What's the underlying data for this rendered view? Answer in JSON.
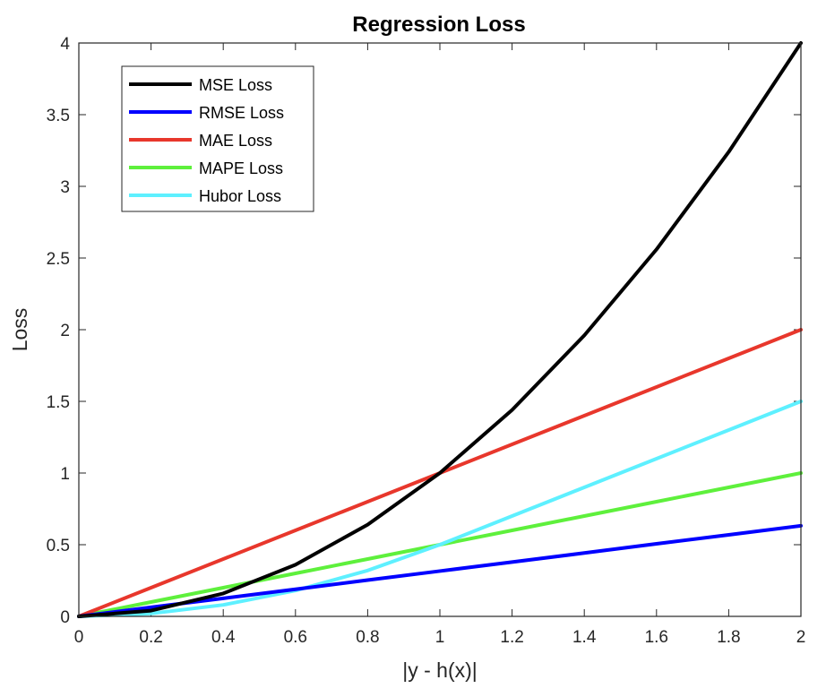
{
  "chart_data": {
    "type": "line",
    "title": "Regression Loss",
    "xlabel": "|y - h(x)|",
    "ylabel": "Loss",
    "xlim": [
      0,
      2
    ],
    "ylim": [
      0,
      4
    ],
    "x_ticks": [
      "0",
      "0.2",
      "0.4",
      "0.6",
      "0.8",
      "1",
      "1.2",
      "1.4",
      "1.6",
      "1.8",
      "2"
    ],
    "y_ticks": [
      "0",
      "0.5",
      "1",
      "1.5",
      "2",
      "2.5",
      "3",
      "3.5",
      "4"
    ],
    "grid": false,
    "legend_position": "top-left",
    "series": [
      {
        "name": "MSE Loss",
        "color": "#000000",
        "x": [
          0,
          0.2,
          0.4,
          0.6,
          0.8,
          1.0,
          1.2,
          1.4,
          1.6,
          1.8,
          2.0
        ],
        "y": [
          0,
          0.04,
          0.16,
          0.36,
          0.64,
          1.0,
          1.44,
          1.96,
          2.56,
          3.24,
          4.0
        ]
      },
      {
        "name": "RMSE Loss",
        "color": "#0000ff",
        "x": [
          0,
          0.2,
          0.4,
          0.6,
          0.8,
          1.0,
          1.2,
          1.4,
          1.6,
          1.8,
          2.0
        ],
        "y": [
          0,
          0.063,
          0.126,
          0.189,
          0.253,
          0.316,
          0.379,
          0.442,
          0.506,
          0.569,
          0.632
        ]
      },
      {
        "name": "MAE Loss",
        "color": "#e8372c",
        "x": [
          0,
          0.2,
          0.4,
          0.6,
          0.8,
          1.0,
          1.2,
          1.4,
          1.6,
          1.8,
          2.0
        ],
        "y": [
          0,
          0.2,
          0.4,
          0.6,
          0.8,
          1.0,
          1.2,
          1.4,
          1.6,
          1.8,
          2.0
        ]
      },
      {
        "name": "MAPE Loss",
        "color": "#5ef03c",
        "x": [
          0,
          0.2,
          0.4,
          0.6,
          0.8,
          1.0,
          1.2,
          1.4,
          1.6,
          1.8,
          2.0
        ],
        "y": [
          0,
          0.1,
          0.2,
          0.3,
          0.4,
          0.5,
          0.6,
          0.7,
          0.8,
          0.9,
          1.0
        ]
      },
      {
        "name": "Hubor Loss",
        "color": "#5ef0ff",
        "x": [
          0,
          0.2,
          0.4,
          0.6,
          0.8,
          1.0,
          1.2,
          1.4,
          1.6,
          1.8,
          2.0
        ],
        "y": [
          0,
          0.02,
          0.08,
          0.18,
          0.32,
          0.5,
          0.7,
          0.9,
          1.1,
          1.3,
          1.5
        ]
      }
    ]
  }
}
